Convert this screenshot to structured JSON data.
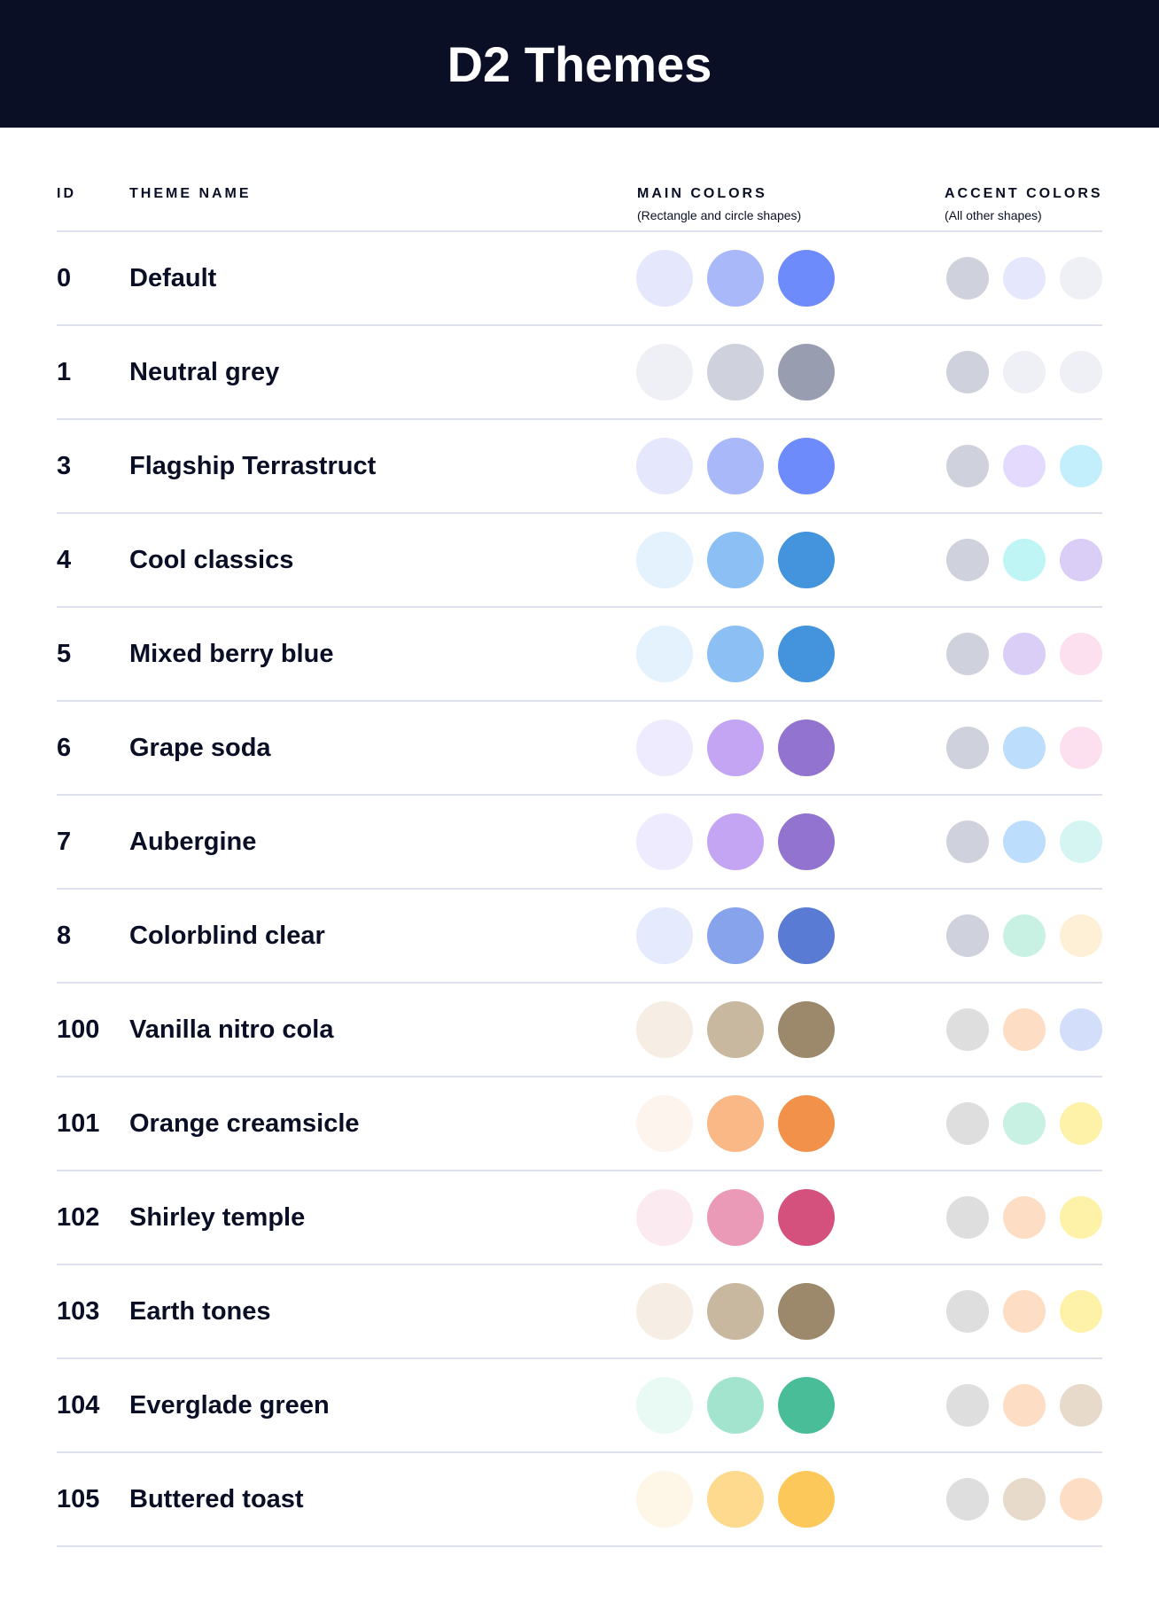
{
  "title": "D2 Themes",
  "columns": {
    "id": "ID",
    "name": "THEME NAME",
    "main": "MAIN COLORS",
    "main_sub": "(Rectangle and circle shapes)",
    "accent": "ACCENT COLORS",
    "accent_sub": "(All other shapes)"
  },
  "themes": [
    {
      "id": "0",
      "name": "Default",
      "main": [
        "#E5E8FD",
        "#A9B8F8",
        "#6E8BFC"
      ],
      "accent": [
        "#CFD2DD",
        "#E5E8FD",
        "#EEF0F6"
      ]
    },
    {
      "id": "1",
      "name": "Neutral grey",
      "main": [
        "#EEF0F6",
        "#CFD2DD",
        "#989EB0"
      ],
      "accent": [
        "#CFD2DD",
        "#EEF0F6",
        "#EEF0F6"
      ]
    },
    {
      "id": "3",
      "name": "Flagship Terrastruct",
      "main": [
        "#E5E8FD",
        "#A9B8F8",
        "#6E8BFC"
      ],
      "accent": [
        "#CFD2DD",
        "#E3DAFE",
        "#C3EFFC"
      ]
    },
    {
      "id": "4",
      "name": "Cool classics",
      "main": [
        "#E3F2FD",
        "#8CC0F4",
        "#4393DD"
      ],
      "accent": [
        "#CFD2DD",
        "#C0F5F5",
        "#DACEF7"
      ]
    },
    {
      "id": "5",
      "name": "Mixed berry blue",
      "main": [
        "#E3F2FD",
        "#8CC0F4",
        "#4393DD"
      ],
      "accent": [
        "#CFD2DD",
        "#DACEF7",
        "#FDE0F0"
      ]
    },
    {
      "id": "6",
      "name": "Grape soda",
      "main": [
        "#EFEBFE",
        "#C4A5F4",
        "#9273D0"
      ],
      "accent": [
        "#CFD2DD",
        "#BCDDFB",
        "#FDE0F0"
      ]
    },
    {
      "id": "7",
      "name": "Aubergine",
      "main": [
        "#EFEBFE",
        "#C4A5F4",
        "#9273D0"
      ],
      "accent": [
        "#CFD2DD",
        "#BCDDFB",
        "#D5F5F2"
      ]
    },
    {
      "id": "8",
      "name": "Colorblind clear",
      "main": [
        "#E5EBFD",
        "#87A3EB",
        "#5A7BD3"
      ],
      "accent": [
        "#CFD2DD",
        "#C9F1E3",
        "#FEF0D7"
      ]
    },
    {
      "id": "100",
      "name": "Vanilla nitro cola",
      "main": [
        "#F6EEE4",
        "#C8B8A0",
        "#9C886B"
      ],
      "accent": [
        "#DEDEDE",
        "#FEDDC5",
        "#D3DEFB"
      ]
    },
    {
      "id": "101",
      "name": "Orange creamsicle",
      "main": [
        "#FEF4EE",
        "#FAB887",
        "#F2914A"
      ],
      "accent": [
        "#DEDEDE",
        "#C9F1E3",
        "#FEF2A8"
      ]
    },
    {
      "id": "102",
      "name": "Shirley temple",
      "main": [
        "#FBEAF0",
        "#EA99B6",
        "#D4507D"
      ],
      "accent": [
        "#DEDEDE",
        "#FEDDC5",
        "#FEF2A8"
      ]
    },
    {
      "id": "103",
      "name": "Earth tones",
      "main": [
        "#F6EEE4",
        "#C8B8A0",
        "#9C886B"
      ],
      "accent": [
        "#DEDEDE",
        "#FEDDC5",
        "#FEF2A8"
      ]
    },
    {
      "id": "104",
      "name": "Everglade green",
      "main": [
        "#E9FAF4",
        "#A3E4CE",
        "#48BD98"
      ],
      "accent": [
        "#DEDEDE",
        "#FEDDC5",
        "#E8DACA"
      ]
    },
    {
      "id": "105",
      "name": "Buttered toast",
      "main": [
        "#FEF7E7",
        "#FEDA8F",
        "#FCC85A"
      ],
      "accent": [
        "#DEDEDE",
        "#E8DACA",
        "#FEDDC5"
      ]
    }
  ]
}
